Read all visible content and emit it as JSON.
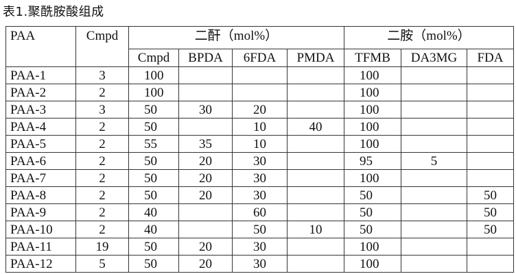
{
  "title": "表1.聚酰胺酸组成",
  "table": {
    "columns": [
      "PAA",
      "Cmpd"
    ],
    "groups": [
      {
        "label": "二酐（mol%）",
        "columns": [
          "Cmpd",
          "BPDA",
          "6FDA",
          "PMDA"
        ]
      },
      {
        "label": "二胺（mol%）",
        "columns": [
          "TFMB",
          "DA3MG",
          "FDA"
        ]
      }
    ],
    "rows": [
      [
        "PAA-1",
        3,
        100,
        null,
        null,
        null,
        100,
        null,
        null
      ],
      [
        "PAA-2",
        2,
        100,
        null,
        null,
        null,
        100,
        null,
        null
      ],
      [
        "PAA-3",
        3,
        50,
        30,
        20,
        null,
        100,
        null,
        null
      ],
      [
        "PAA-4",
        2,
        50,
        null,
        10,
        40,
        100,
        null,
        null
      ],
      [
        "PAA-5",
        2,
        55,
        35,
        10,
        null,
        100,
        null,
        null
      ],
      [
        "PAA-6",
        2,
        50,
        20,
        30,
        null,
        95,
        5,
        null
      ],
      [
        "PAA-7",
        2,
        50,
        20,
        30,
        null,
        100,
        null,
        null
      ],
      [
        "PAA-8",
        2,
        50,
        20,
        30,
        null,
        50,
        null,
        50
      ],
      [
        "PAA-9",
        2,
        40,
        null,
        60,
        null,
        50,
        null,
        50
      ],
      [
        "PAA-10",
        2,
        40,
        null,
        50,
        10,
        50,
        null,
        50
      ],
      [
        "PAA-11",
        19,
        50,
        20,
        30,
        null,
        100,
        null,
        null
      ],
      [
        "PAA-12",
        5,
        50,
        20,
        30,
        null,
        100,
        null,
        null
      ]
    ]
  }
}
